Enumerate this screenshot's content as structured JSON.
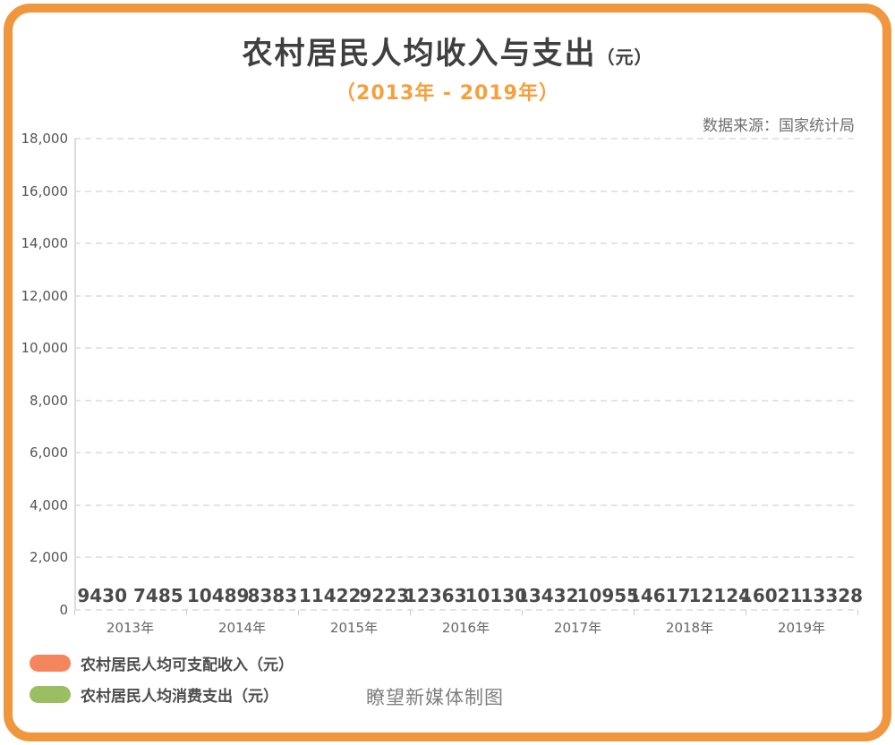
{
  "page": {
    "title": "农村居民人均收入与支出",
    "title_unit": "（元）",
    "subtitle": "（2013年 - 2019年）",
    "source": "数据来源：国家统计局",
    "footer": "瞭望新媒体制图",
    "border_color": "#F0963C",
    "subtitle_color": "#F5A03D"
  },
  "chart_data": {
    "type": "bar",
    "title": "农村居民人均收入与支出（元）",
    "subtitle": "（2013年 - 2019年）",
    "categories": [
      "2013年",
      "2014年",
      "2015年",
      "2016年",
      "2017年",
      "2018年",
      "2019年"
    ],
    "series": [
      {
        "name": "农村居民人均可支配收入（元）",
        "color": "#F5855C",
        "values": [
          9430,
          10489,
          11422,
          12363,
          13432,
          14617,
          16021
        ]
      },
      {
        "name": "农村居民人均消费支出（元）",
        "color": "#9CBE63",
        "values": [
          7485,
          8383,
          9223,
          10130,
          10955,
          12124,
          13328
        ]
      }
    ],
    "ylim": [
      0,
      18000
    ],
    "ytick_step": 2000,
    "ytick_labels": [
      "0",
      "2,000",
      "4,000",
      "6,000",
      "8,000",
      "10,000",
      "12,000",
      "14,000",
      "16,000",
      "18,000"
    ],
    "grid": "horizontal dashed",
    "legend_position": "bottom-left",
    "bars_visible": false,
    "value_labels_visible": true
  }
}
